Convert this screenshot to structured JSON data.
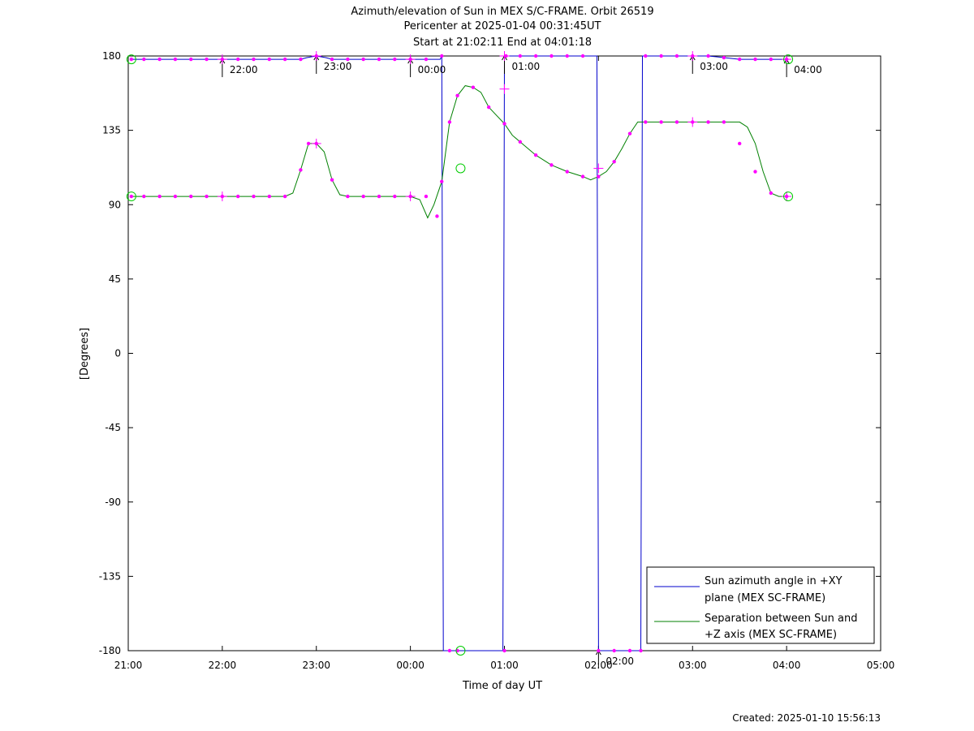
{
  "chart_data": {
    "type": "line",
    "title": [
      "Azimuth/elevation of Sun in MEX S/C-FRAME.  Orbit 26519",
      "Pericenter at 2025-01-04 00:31:45UT",
      "Start at 21:02:11 End at 04:01:18"
    ],
    "xlabel": "Time of day UT",
    "ylabel": "[Degrees]",
    "x_unit": "minutes after 21:00 UT",
    "xlim": [
      0,
      480
    ],
    "ylim": [
      -180,
      180
    ],
    "xticks": [
      {
        "v": 0,
        "label": "21:00"
      },
      {
        "v": 60,
        "label": "22:00"
      },
      {
        "v": 120,
        "label": "23:00"
      },
      {
        "v": 180,
        "label": "00:00"
      },
      {
        "v": 240,
        "label": "01:00"
      },
      {
        "v": 300,
        "label": "02:00"
      },
      {
        "v": 360,
        "label": "03:00"
      },
      {
        "v": 420,
        "label": "04:00"
      },
      {
        "v": 480,
        "label": "05:00"
      }
    ],
    "yticks": [
      {
        "v": 180,
        "label": "180"
      },
      {
        "v": 135,
        "label": "135"
      },
      {
        "v": 90,
        "label": "90"
      },
      {
        "v": 45,
        "label": "45"
      },
      {
        "v": 0,
        "label": "0"
      },
      {
        "v": -45,
        "label": "-45"
      },
      {
        "v": -90,
        "label": "-90"
      },
      {
        "v": -135,
        "label": "-135"
      },
      {
        "v": -180,
        "label": "-180"
      }
    ],
    "legend_position": "bottom-right",
    "series": [
      {
        "name": "Sun azimuth angle in +XY plane (MEX SC-FRAME)",
        "legend_lines": [
          "Sun azimuth angle in +XY",
          "plane (MEX SC-FRAME)"
        ],
        "color": "#0000cc",
        "x": [
          2,
          10,
          20,
          30,
          40,
          50,
          60,
          70,
          80,
          90,
          100,
          110,
          114,
          120,
          126,
          130,
          140,
          150,
          160,
          170,
          180,
          190,
          199,
          200,
          201,
          203,
          230,
          239,
          240,
          250,
          260,
          270,
          280,
          290,
          299,
          300,
          301,
          310,
          320,
          327,
          328,
          330,
          340,
          350,
          360,
          370,
          380,
          390,
          400,
          410,
          420,
          421
        ],
        "y": [
          178,
          178,
          178,
          178,
          178,
          178,
          178,
          178,
          178,
          178,
          178,
          178,
          179,
          180,
          179,
          178,
          178,
          178,
          178,
          178,
          178,
          178,
          178,
          180,
          -180,
          -180,
          -180,
          -180,
          180,
          180,
          180,
          180,
          180,
          180,
          180,
          -180,
          -180,
          -180,
          -180,
          -180,
          180,
          180,
          180,
          180,
          180,
          180,
          179,
          178,
          178,
          178,
          178,
          178
        ]
      },
      {
        "name": "Separation between Sun and +Z axis (MEX SC-FRAME)",
        "legend_lines": [
          "Separation between Sun and",
          "+Z axis (MEX SC-FRAME)"
        ],
        "color": "#008000",
        "x": [
          2,
          10,
          20,
          30,
          40,
          50,
          60,
          70,
          80,
          90,
          100,
          105,
          110,
          115,
          120,
          125,
          130,
          135,
          140,
          150,
          160,
          170,
          180,
          186,
          191,
          195,
          200,
          205,
          210,
          215,
          220,
          225,
          230,
          235,
          240,
          245,
          250,
          260,
          270,
          280,
          290,
          295,
          300,
          305,
          310,
          315,
          320,
          325,
          330,
          340,
          350,
          360,
          370,
          380,
          390,
          395,
          400,
          405,
          410,
          415,
          420,
          421
        ],
        "y": [
          95,
          95,
          95,
          95,
          95,
          95,
          95,
          95,
          95,
          95,
          95,
          97,
          111,
          127,
          127,
          122,
          105,
          96,
          95,
          95,
          95,
          95,
          95,
          93,
          82,
          90,
          104,
          140,
          156,
          162,
          161,
          158,
          149,
          144,
          139,
          132,
          128,
          120,
          114,
          110,
          107,
          105,
          107,
          110,
          116,
          124,
          133,
          140,
          140,
          140,
          140,
          140,
          140,
          140,
          140,
          137,
          127,
          110,
          97,
          95,
          95,
          95
        ]
      }
    ],
    "markers": [
      {
        "x": 2,
        "y": 178
      },
      {
        "x": 10,
        "y": 178
      },
      {
        "x": 20,
        "y": 178
      },
      {
        "x": 30,
        "y": 178
      },
      {
        "x": 40,
        "y": 178
      },
      {
        "x": 50,
        "y": 178
      },
      {
        "x": 60,
        "y": 178
      },
      {
        "x": 70,
        "y": 178
      },
      {
        "x": 80,
        "y": 178
      },
      {
        "x": 90,
        "y": 178
      },
      {
        "x": 100,
        "y": 178
      },
      {
        "x": 110,
        "y": 178
      },
      {
        "x": 120,
        "y": 180
      },
      {
        "x": 130,
        "y": 178
      },
      {
        "x": 140,
        "y": 178
      },
      {
        "x": 150,
        "y": 178
      },
      {
        "x": 160,
        "y": 178
      },
      {
        "x": 170,
        "y": 178
      },
      {
        "x": 180,
        "y": 178
      },
      {
        "x": 190,
        "y": 178
      },
      {
        "x": 200,
        "y": 180
      },
      {
        "x": 241,
        "y": 180
      },
      {
        "x": 250,
        "y": 180
      },
      {
        "x": 260,
        "y": 180
      },
      {
        "x": 270,
        "y": 180
      },
      {
        "x": 280,
        "y": 180
      },
      {
        "x": 290,
        "y": 180
      },
      {
        "x": 330,
        "y": 180
      },
      {
        "x": 340,
        "y": 180
      },
      {
        "x": 350,
        "y": 180
      },
      {
        "x": 360,
        "y": 180
      },
      {
        "x": 370,
        "y": 180
      },
      {
        "x": 380,
        "y": 179
      },
      {
        "x": 390,
        "y": 178
      },
      {
        "x": 400,
        "y": 178
      },
      {
        "x": 410,
        "y": 178
      },
      {
        "x": 420,
        "y": 178
      },
      {
        "x": 205,
        "y": -180
      },
      {
        "x": 210,
        "y": -180
      },
      {
        "x": 240,
        "y": -180
      },
      {
        "x": 300,
        "y": -180
      },
      {
        "x": 310,
        "y": -180
      },
      {
        "x": 320,
        "y": -180
      },
      {
        "x": 327,
        "y": -180
      },
      {
        "x": 2,
        "y": 95
      },
      {
        "x": 10,
        "y": 95
      },
      {
        "x": 20,
        "y": 95
      },
      {
        "x": 30,
        "y": 95
      },
      {
        "x": 40,
        "y": 95
      },
      {
        "x": 50,
        "y": 95
      },
      {
        "x": 60,
        "y": 95
      },
      {
        "x": 70,
        "y": 95
      },
      {
        "x": 80,
        "y": 95
      },
      {
        "x": 90,
        "y": 95
      },
      {
        "x": 100,
        "y": 95
      },
      {
        "x": 110,
        "y": 111
      },
      {
        "x": 115,
        "y": 127
      },
      {
        "x": 120,
        "y": 127
      },
      {
        "x": 130,
        "y": 105
      },
      {
        "x": 140,
        "y": 95
      },
      {
        "x": 150,
        "y": 95
      },
      {
        "x": 160,
        "y": 95
      },
      {
        "x": 170,
        "y": 95
      },
      {
        "x": 180,
        "y": 95
      },
      {
        "x": 190,
        "y": 95
      },
      {
        "x": 197,
        "y": 83
      },
      {
        "x": 200,
        "y": 104
      },
      {
        "x": 205,
        "y": 140
      },
      {
        "x": 210,
        "y": 156
      },
      {
        "x": 220,
        "y": 161
      },
      {
        "x": 230,
        "y": 149
      },
      {
        "x": 240,
        "y": 139
      },
      {
        "x": 250,
        "y": 128
      },
      {
        "x": 260,
        "y": 120
      },
      {
        "x": 270,
        "y": 114
      },
      {
        "x": 280,
        "y": 110
      },
      {
        "x": 290,
        "y": 107
      },
      {
        "x": 300,
        "y": 107
      },
      {
        "x": 310,
        "y": 116
      },
      {
        "x": 320,
        "y": 133
      },
      {
        "x": 330,
        "y": 140
      },
      {
        "x": 340,
        "y": 140
      },
      {
        "x": 350,
        "y": 140
      },
      {
        "x": 360,
        "y": 140
      },
      {
        "x": 370,
        "y": 140
      },
      {
        "x": 380,
        "y": 140
      },
      {
        "x": 390,
        "y": 127
      },
      {
        "x": 400,
        "y": 110
      },
      {
        "x": 410,
        "y": 97
      },
      {
        "x": 420,
        "y": 95
      }
    ],
    "crosses": [
      {
        "x": 60,
        "y": 178
      },
      {
        "x": 120,
        "y": 180
      },
      {
        "x": 180,
        "y": 178
      },
      {
        "x": 240,
        "y": 180
      },
      {
        "x": 360,
        "y": 180
      },
      {
        "x": 420,
        "y": 178
      },
      {
        "x": 60,
        "y": 95
      },
      {
        "x": 120,
        "y": 127
      },
      {
        "x": 180,
        "y": 95
      },
      {
        "x": 240,
        "y": 160
      },
      {
        "x": 300,
        "y": 112
      },
      {
        "x": 360,
        "y": 140
      },
      {
        "x": 420,
        "y": 95
      }
    ],
    "circles": [
      {
        "x": 2,
        "y": 178
      },
      {
        "x": 421,
        "y": 178
      },
      {
        "x": 2,
        "y": 95
      },
      {
        "x": 421,
        "y": 95
      },
      {
        "x": 212,
        "y": 112
      },
      {
        "x": 212,
        "y": -180
      }
    ],
    "hour_annotations": [
      {
        "x": 60,
        "y": 178,
        "label": "22:00"
      },
      {
        "x": 120,
        "y": 180,
        "label": "23:00"
      },
      {
        "x": 180,
        "y": 178,
        "label": "00:00"
      },
      {
        "x": 240,
        "y": 180,
        "label": "01:00"
      },
      {
        "x": 300,
        "y": -180,
        "label": "02:00"
      },
      {
        "x": 360,
        "y": 180,
        "label": "03:00"
      },
      {
        "x": 420,
        "y": 178,
        "label": "04:00"
      }
    ]
  },
  "footer": {
    "created": "Created: 2025-01-10 15:56:13"
  }
}
